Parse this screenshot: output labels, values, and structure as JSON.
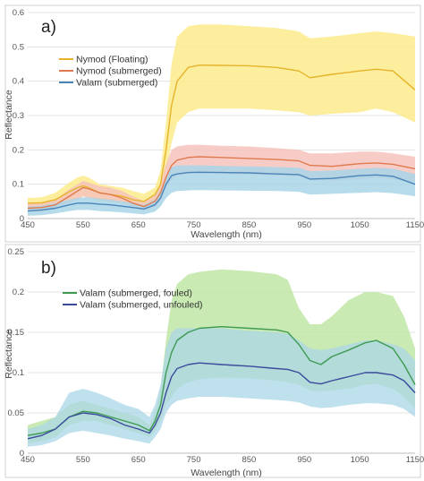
{
  "chart_data": [
    {
      "type": "line",
      "panel_label": "a)",
      "xlabel": "Wavelength (nm)",
      "ylabel": "Reflectance",
      "xlim": [
        450,
        1150
      ],
      "ylim": [
        0,
        0.6
      ],
      "xticks": [
        450,
        550,
        650,
        750,
        850,
        950,
        1050,
        1150
      ],
      "yticks": [
        0,
        0.1,
        0.2,
        0.3,
        0.4,
        0.5,
        0.6
      ],
      "ytick_labels": [
        "0",
        "0.1",
        "0.2",
        "0.3",
        "0.4",
        "0.5",
        "0.6"
      ],
      "grid": true,
      "legend_position": "upper-left",
      "x": [
        450,
        475,
        500,
        525,
        540,
        550,
        560,
        580,
        600,
        620,
        640,
        660,
        680,
        690,
        700,
        710,
        720,
        740,
        760,
        800,
        850,
        900,
        940,
        960,
        1000,
        1050,
        1080,
        1110,
        1150
      ],
      "series": [
        {
          "name": "Nymod (Floating)",
          "color": "#e6b32a",
          "band_color": "#fbeb8c",
          "mean": [
            0.045,
            0.046,
            0.055,
            0.078,
            0.09,
            0.095,
            0.09,
            0.075,
            0.07,
            0.065,
            0.055,
            0.05,
            0.07,
            0.1,
            0.2,
            0.33,
            0.4,
            0.44,
            0.447,
            0.446,
            0.445,
            0.44,
            0.43,
            0.41,
            0.42,
            0.43,
            0.435,
            0.43,
            0.375
          ],
          "upper": [
            0.06,
            0.062,
            0.075,
            0.105,
            0.12,
            0.125,
            0.12,
            0.1,
            0.095,
            0.09,
            0.08,
            0.072,
            0.09,
            0.14,
            0.28,
            0.45,
            0.53,
            0.56,
            0.565,
            0.565,
            0.56,
            0.555,
            0.545,
            0.525,
            0.53,
            0.54,
            0.545,
            0.54,
            0.53
          ],
          "lower": [
            0.03,
            0.03,
            0.035,
            0.05,
            0.06,
            0.065,
            0.06,
            0.05,
            0.048,
            0.045,
            0.035,
            0.03,
            0.05,
            0.07,
            0.14,
            0.22,
            0.28,
            0.31,
            0.32,
            0.32,
            0.32,
            0.315,
            0.31,
            0.3,
            0.305,
            0.31,
            0.32,
            0.31,
            0.28
          ]
        },
        {
          "name": "Nymod (submerged)",
          "color": "#e07a4e",
          "band_color": "#f6c3bc",
          "mean": [
            0.03,
            0.032,
            0.04,
            0.065,
            0.08,
            0.09,
            0.087,
            0.075,
            0.07,
            0.06,
            0.045,
            0.035,
            0.05,
            0.075,
            0.12,
            0.155,
            0.17,
            0.178,
            0.18,
            0.178,
            0.175,
            0.172,
            0.168,
            0.155,
            0.152,
            0.16,
            0.162,
            0.158,
            0.145
          ],
          "upper": [
            0.045,
            0.045,
            0.055,
            0.085,
            0.1,
            0.11,
            0.105,
            0.095,
            0.09,
            0.08,
            0.065,
            0.05,
            0.07,
            0.1,
            0.16,
            0.2,
            0.21,
            0.215,
            0.215,
            0.212,
            0.21,
            0.205,
            0.2,
            0.19,
            0.19,
            0.195,
            0.195,
            0.19,
            0.18
          ],
          "lower": [
            0.02,
            0.02,
            0.028,
            0.045,
            0.055,
            0.065,
            0.06,
            0.055,
            0.05,
            0.045,
            0.032,
            0.025,
            0.035,
            0.05,
            0.09,
            0.11,
            0.125,
            0.13,
            0.132,
            0.13,
            0.128,
            0.125,
            0.122,
            0.112,
            0.11,
            0.115,
            0.118,
            0.115,
            0.105
          ]
        },
        {
          "name": "Valam (submerged)",
          "color": "#4a84b8",
          "band_color": "#a9d5e7",
          "mean": [
            0.022,
            0.025,
            0.03,
            0.04,
            0.045,
            0.045,
            0.045,
            0.042,
            0.04,
            0.036,
            0.032,
            0.028,
            0.04,
            0.06,
            0.1,
            0.125,
            0.13,
            0.134,
            0.135,
            0.134,
            0.133,
            0.13,
            0.128,
            0.115,
            0.117,
            0.125,
            0.127,
            0.123,
            0.1
          ],
          "upper": [
            0.035,
            0.037,
            0.045,
            0.055,
            0.06,
            0.062,
            0.062,
            0.058,
            0.055,
            0.05,
            0.045,
            0.04,
            0.055,
            0.08,
            0.12,
            0.15,
            0.155,
            0.155,
            0.155,
            0.153,
            0.152,
            0.15,
            0.148,
            0.138,
            0.14,
            0.145,
            0.148,
            0.145,
            0.13
          ],
          "lower": [
            0.008,
            0.01,
            0.015,
            0.022,
            0.025,
            0.025,
            0.025,
            0.022,
            0.02,
            0.018,
            0.015,
            0.012,
            0.02,
            0.035,
            0.06,
            0.075,
            0.08,
            0.082,
            0.083,
            0.082,
            0.081,
            0.08,
            0.078,
            0.07,
            0.072,
            0.075,
            0.077,
            0.074,
            0.065
          ]
        }
      ]
    },
    {
      "type": "line",
      "panel_label": "b)",
      "xlabel": "Wavelength (nm)",
      "ylabel": "Reflectance",
      "xlim": [
        450,
        1150
      ],
      "ylim": [
        0,
        0.25
      ],
      "xticks": [
        450,
        550,
        650,
        750,
        850,
        950,
        1050,
        1150
      ],
      "yticks": [
        0,
        0.05,
        0.1,
        0.15,
        0.2,
        0.25
      ],
      "ytick_labels": [
        "0",
        "0.05",
        "0.1",
        "0.15",
        "0.2",
        "0.25"
      ],
      "grid": true,
      "legend_position": "upper-left",
      "x": [
        450,
        475,
        500,
        525,
        550,
        575,
        600,
        625,
        650,
        670,
        680,
        690,
        700,
        710,
        720,
        740,
        760,
        800,
        850,
        900,
        920,
        940,
        960,
        980,
        1000,
        1030,
        1060,
        1080,
        1110,
        1130,
        1150
      ],
      "series": [
        {
          "name": "Valam (submerged, fouled)",
          "color": "#3e9a52",
          "band_color": "#bfe6a5",
          "mean": [
            0.022,
            0.025,
            0.03,
            0.045,
            0.052,
            0.05,
            0.045,
            0.04,
            0.035,
            0.028,
            0.04,
            0.06,
            0.1,
            0.125,
            0.14,
            0.15,
            0.155,
            0.157,
            0.155,
            0.153,
            0.15,
            0.135,
            0.115,
            0.11,
            0.12,
            0.128,
            0.137,
            0.14,
            0.13,
            0.11,
            0.085
          ],
          "upper": [
            0.035,
            0.04,
            0.045,
            0.06,
            0.065,
            0.06,
            0.055,
            0.05,
            0.045,
            0.035,
            0.05,
            0.08,
            0.14,
            0.19,
            0.21,
            0.222,
            0.225,
            0.228,
            0.226,
            0.222,
            0.215,
            0.18,
            0.16,
            0.16,
            0.17,
            0.19,
            0.2,
            0.2,
            0.195,
            0.17,
            0.13
          ],
          "lower": [
            0.012,
            0.015,
            0.02,
            0.035,
            0.04,
            0.04,
            0.035,
            0.03,
            0.025,
            0.02,
            0.028,
            0.04,
            0.06,
            0.07,
            0.08,
            0.088,
            0.092,
            0.094,
            0.093,
            0.09,
            0.088,
            0.085,
            0.078,
            0.077,
            0.078,
            0.08,
            0.085,
            0.086,
            0.08,
            0.07,
            0.055
          ]
        },
        {
          "name": "Valam (submerged, unfouled)",
          "color": "#3b4a9c",
          "band_color": "#a9d5e7",
          "mean": [
            0.018,
            0.022,
            0.03,
            0.045,
            0.05,
            0.048,
            0.043,
            0.035,
            0.03,
            0.025,
            0.035,
            0.05,
            0.075,
            0.095,
            0.105,
            0.11,
            0.112,
            0.11,
            0.108,
            0.105,
            0.104,
            0.1,
            0.088,
            0.086,
            0.09,
            0.095,
            0.1,
            0.1,
            0.097,
            0.09,
            0.075
          ],
          "upper": [
            0.03,
            0.035,
            0.045,
            0.075,
            0.08,
            0.075,
            0.068,
            0.06,
            0.055,
            0.045,
            0.06,
            0.085,
            0.13,
            0.15,
            0.155,
            0.155,
            0.155,
            0.155,
            0.152,
            0.15,
            0.148,
            0.14,
            0.13,
            0.128,
            0.13,
            0.135,
            0.14,
            0.14,
            0.135,
            0.13,
            0.115
          ],
          "lower": [
            0.008,
            0.01,
            0.015,
            0.025,
            0.028,
            0.025,
            0.022,
            0.018,
            0.015,
            0.012,
            0.02,
            0.03,
            0.05,
            0.06,
            0.065,
            0.068,
            0.07,
            0.07,
            0.068,
            0.066,
            0.065,
            0.063,
            0.058,
            0.056,
            0.057,
            0.06,
            0.062,
            0.062,
            0.06,
            0.055,
            0.045
          ]
        }
      ]
    }
  ]
}
